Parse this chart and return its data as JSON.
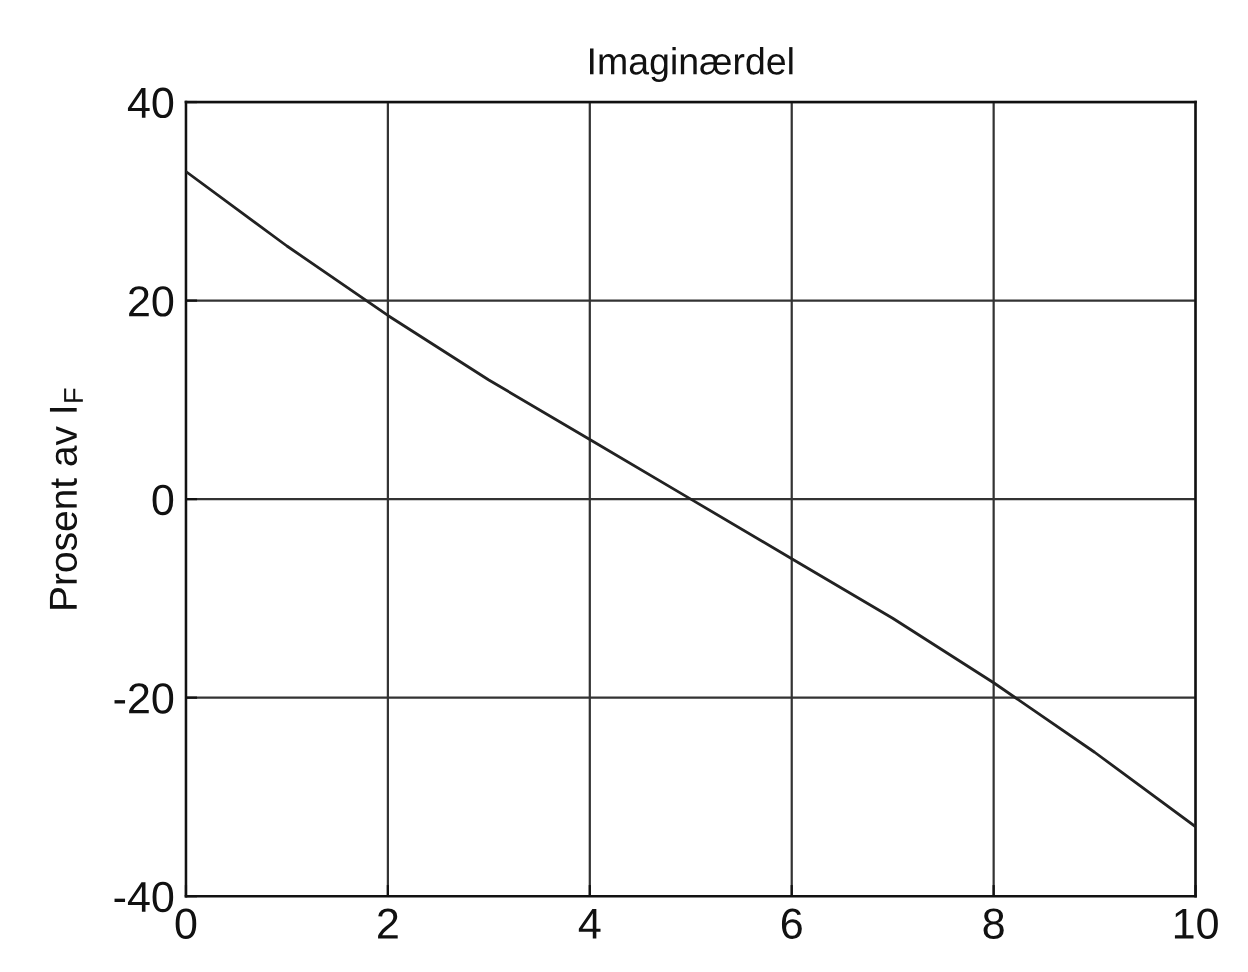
{
  "chart_data": {
    "type": "line",
    "title": "Imaginærdel",
    "ylabel": "Prosent av I$_{F}$",
    "x": [
      0,
      1,
      2,
      3,
      4,
      5,
      6,
      7,
      8,
      9,
      10
    ],
    "series": [
      {
        "color": "#222222",
        "values": [
          33,
          25.5,
          18.5,
          12,
          6,
          0,
          -6,
          -12,
          -18.5,
          -25.5,
          -33
        ]
      }
    ],
    "xlim": [
      0,
      10
    ],
    "xticks": [
      0,
      2,
      4,
      6,
      8,
      10
    ],
    "ylim": [
      -40,
      40
    ],
    "yticks": [
      -40,
      -20,
      0,
      20,
      40
    ],
    "grid": true,
    "marker": "none",
    "line_style": "solid"
  }
}
